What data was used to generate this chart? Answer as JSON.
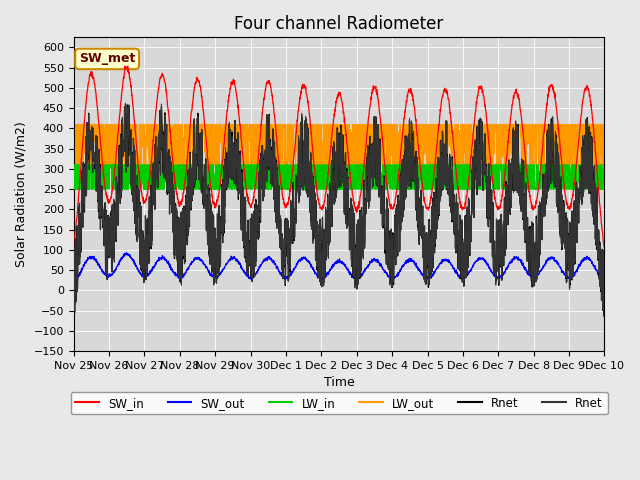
{
  "title": "Four channel Radiometer",
  "xlabel": "Time",
  "ylabel": "Solar Radiation (W/m2)",
  "ylim": [
    -150,
    625
  ],
  "yticks": [
    -150,
    -100,
    -50,
    0,
    50,
    100,
    150,
    200,
    250,
    300,
    350,
    400,
    450,
    500,
    550,
    600
  ],
  "background_color": "#e8e8e8",
  "plot_bg_color": "#d8d8d8",
  "annotation_text": "SW_met",
  "annotation_bg": "#ffffcc",
  "annotation_border": "#cc8800",
  "colors": {
    "SW_in": "#ff0000",
    "SW_out": "#0000ff",
    "LW_in": "#00cc00",
    "LW_out": "#ff9900",
    "Rnet1": "#000000",
    "Rnet2": "#333333"
  },
  "n_days": 15,
  "day_start": 0,
  "points_per_day": 144,
  "SW_in_peak": 530,
  "SW_out_base": 80,
  "LW_in_base": 275,
  "LW_out_base": 350,
  "Rnet_night": -95,
  "x_tick_labels": [
    "Nov 25",
    "Nov 26",
    "Nov 27",
    "Nov 28",
    "Nov 29",
    "Nov 30",
    "Dec 1",
    "Dec 2",
    "Dec 3",
    "Dec 4",
    "Dec 5",
    "Dec 6",
    "Dec 7",
    "Dec 8",
    "Dec 9",
    "Dec 10"
  ],
  "figsize": [
    6.4,
    4.8
  ],
  "dpi": 100
}
